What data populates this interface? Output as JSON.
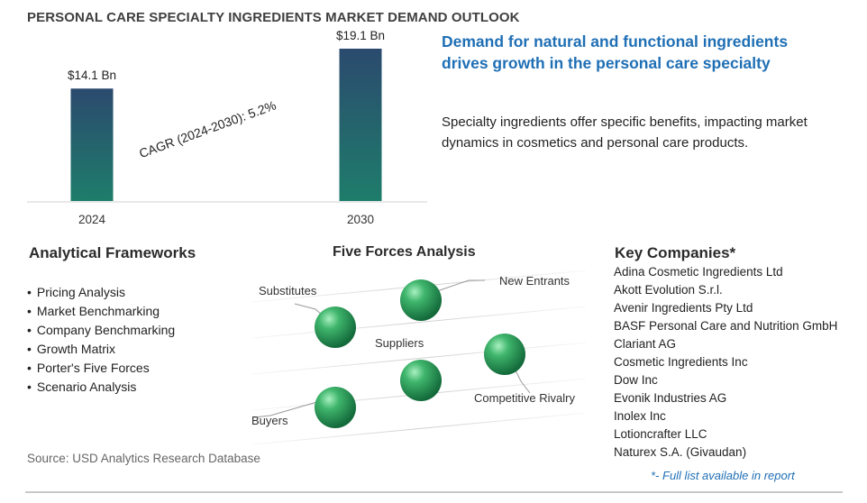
{
  "title": "PERSONAL CARE SPECIALTY INGREDIENTS MARKET DEMAND OUTLOOK",
  "headline": "Demand for natural and functional ingredients drives growth in the personal care specialty",
  "description": "Specialty ingredients offer specific benefits, impacting market dynamics in cosmetics and personal care products.",
  "chart_data": {
    "type": "bar",
    "categories": [
      "2024",
      "2030"
    ],
    "values": [
      14.1,
      19.1
    ],
    "data_labels": [
      "$14.1 Bn",
      "$19.1 Bn"
    ],
    "annotation": "CAGR (2024-2030):  5.2%",
    "title": "",
    "xlabel": "",
    "ylabel": "",
    "ylim": [
      0,
      20
    ],
    "grid": false,
    "bar_color_top": "#2b4a6e",
    "bar_color_bottom": "#1e7d6b"
  },
  "frameworks": {
    "heading": "Analytical Frameworks",
    "items": [
      "Pricing Analysis",
      "Market Benchmarking",
      "Company Benchmarking",
      "Growth Matrix",
      "Porter's Five Forces",
      "Scenario Analysis"
    ]
  },
  "five_forces": {
    "heading": "Five Forces Analysis",
    "labels": {
      "substitutes": "Substitutes",
      "new_entrants": "New Entrants",
      "suppliers": "Suppliers",
      "competitive_rivalry": "Competitive Rivalry",
      "buyers": "Buyers"
    },
    "sphere_color": "#2e9a5a"
  },
  "companies": {
    "heading": "Key Companies*",
    "items": [
      "Adina Cosmetic Ingredients Ltd",
      "Akott Evolution S.r.l.",
      "Avenir Ingredients Pty Ltd",
      "BASF Personal Care and Nutrition GmbH",
      "Clariant AG",
      "Cosmetic Ingredients Inc",
      "Dow Inc",
      "Evonik Industries AG",
      "Inolex Inc",
      "Lotioncrafter LLC",
      "Naturex S.A. (Givaudan)"
    ],
    "footnote": "*- Full list available in report"
  },
  "source": "Source: USD Analytics Research Database",
  "colors": {
    "headline": "#1f6fb5",
    "title": "#3f3f3f"
  }
}
